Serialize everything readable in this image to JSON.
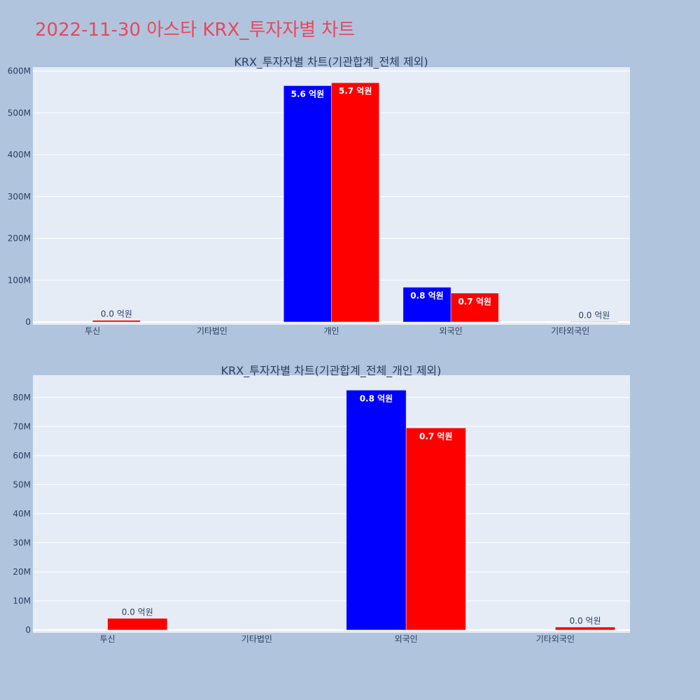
{
  "title": "2022-11-30 아스타 KRX_투자자별 차트",
  "colors": {
    "buy": "#0000ff",
    "sell": "#ff0000",
    "plot_bg": "#e5ecf6",
    "page_bg": "#b0c4de",
    "title": "#e8475c"
  },
  "chart_data": [
    {
      "type": "bar",
      "title": "KRX_투자자별 차트(기관합계_전체 제외)",
      "categories": [
        "투신",
        "기타법인",
        "개인",
        "외국인",
        "기타외국인"
      ],
      "ylim": [
        0,
        600000000
      ],
      "yticks": [
        0,
        100000000,
        200000000,
        300000000,
        400000000,
        500000000,
        600000000
      ],
      "ytick_labels": [
        "0",
        "100M",
        "200M",
        "300M",
        "400M",
        "500M",
        "600M"
      ],
      "grid": true,
      "series": [
        {
          "color": "#0000ff",
          "values": [
            0,
            0,
            565000000,
            83000000,
            0
          ],
          "labels": [
            "",
            "",
            "5.6 억원",
            "0.8 억원",
            ""
          ]
        },
        {
          "color": "#ff0000",
          "values": [
            4000000,
            0,
            572000000,
            69000000,
            1000000
          ],
          "labels": [
            "0.0 억원",
            "",
            "5.7 억원",
            "0.7 억원",
            "0.0 억원"
          ]
        }
      ]
    },
    {
      "type": "bar",
      "title": "KRX_투자자별 차트(기관합계_전체_개인 제외)",
      "categories": [
        "투신",
        "기타법인",
        "외국인",
        "기타외국인"
      ],
      "ylim": [
        0,
        85000000
      ],
      "yticks": [
        0,
        10000000,
        20000000,
        30000000,
        40000000,
        50000000,
        60000000,
        70000000,
        80000000
      ],
      "ytick_labels": [
        "0",
        "10M",
        "20M",
        "30M",
        "40M",
        "50M",
        "60M",
        "70M",
        "80M"
      ],
      "grid": true,
      "series": [
        {
          "color": "#0000ff",
          "values": [
            0,
            0,
            82500000,
            0
          ],
          "labels": [
            "",
            "",
            "0.8 억원",
            ""
          ]
        },
        {
          "color": "#ff0000",
          "values": [
            4000000,
            0,
            69500000,
            1000000
          ],
          "labels": [
            "0.0 억원",
            "",
            "0.7 억원",
            "0.0 억원"
          ]
        }
      ]
    }
  ]
}
